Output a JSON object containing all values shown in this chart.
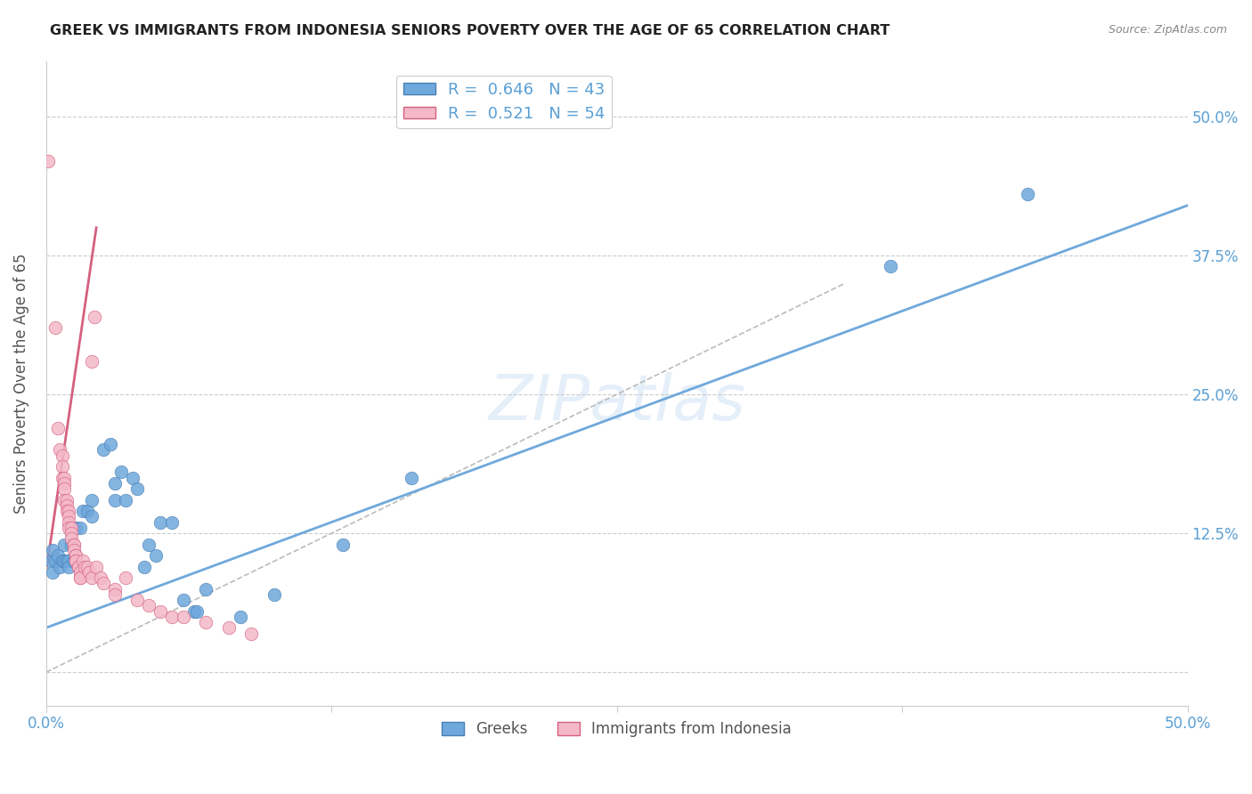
{
  "title": "GREEK VS IMMIGRANTS FROM INDONESIA SENIORS POVERTY OVER THE AGE OF 65 CORRELATION CHART",
  "source": "Source: ZipAtlas.com",
  "ylabel": "Seniors Poverty Over the Age of 65",
  "xlim": [
    0,
    0.5
  ],
  "ylim": [
    -0.03,
    0.55
  ],
  "yticks": [
    0,
    0.125,
    0.25,
    0.375,
    0.5
  ],
  "ytick_labels": [
    "",
    "12.5%",
    "25.0%",
    "37.5%",
    "50.0%"
  ],
  "greek_color": "#6fa8dc",
  "greek_edge": "#4a80b4",
  "indonesia_color": "#f4b8c8",
  "indonesia_edge": "#d46080",
  "greek_R": 0.646,
  "greek_N": 43,
  "indonesia_R": 0.521,
  "indonesia_N": 54,
  "watermark": "ZIPatlas",
  "title_color": "#222222",
  "axis_color": "#5a9fd4",
  "grid_color": "#cccccc",
  "greek_scatter": [
    [
      0.002,
      0.1
    ],
    [
      0.003,
      0.09
    ],
    [
      0.003,
      0.11
    ],
    [
      0.004,
      0.1
    ],
    [
      0.005,
      0.105
    ],
    [
      0.006,
      0.095
    ],
    [
      0.007,
      0.1
    ],
    [
      0.008,
      0.1
    ],
    [
      0.008,
      0.115
    ],
    [
      0.009,
      0.1
    ],
    [
      0.01,
      0.1
    ],
    [
      0.01,
      0.095
    ],
    [
      0.011,
      0.115
    ],
    [
      0.012,
      0.1
    ],
    [
      0.013,
      0.13
    ],
    [
      0.015,
      0.13
    ],
    [
      0.016,
      0.145
    ],
    [
      0.018,
      0.145
    ],
    [
      0.02,
      0.14
    ],
    [
      0.02,
      0.155
    ],
    [
      0.025,
      0.2
    ],
    [
      0.028,
      0.205
    ],
    [
      0.03,
      0.155
    ],
    [
      0.03,
      0.17
    ],
    [
      0.033,
      0.18
    ],
    [
      0.035,
      0.155
    ],
    [
      0.038,
      0.175
    ],
    [
      0.04,
      0.165
    ],
    [
      0.043,
      0.095
    ],
    [
      0.045,
      0.115
    ],
    [
      0.048,
      0.105
    ],
    [
      0.05,
      0.135
    ],
    [
      0.055,
      0.135
    ],
    [
      0.06,
      0.065
    ],
    [
      0.065,
      0.055
    ],
    [
      0.066,
      0.055
    ],
    [
      0.07,
      0.075
    ],
    [
      0.085,
      0.05
    ],
    [
      0.1,
      0.07
    ],
    [
      0.13,
      0.115
    ],
    [
      0.16,
      0.175
    ],
    [
      0.43,
      0.43
    ],
    [
      0.37,
      0.365
    ]
  ],
  "indonesia_scatter": [
    [
      0.001,
      0.46
    ],
    [
      0.004,
      0.31
    ],
    [
      0.005,
      0.22
    ],
    [
      0.006,
      0.2
    ],
    [
      0.007,
      0.195
    ],
    [
      0.007,
      0.185
    ],
    [
      0.007,
      0.175
    ],
    [
      0.008,
      0.175
    ],
    [
      0.008,
      0.17
    ],
    [
      0.008,
      0.165
    ],
    [
      0.008,
      0.155
    ],
    [
      0.009,
      0.155
    ],
    [
      0.009,
      0.15
    ],
    [
      0.009,
      0.145
    ],
    [
      0.01,
      0.145
    ],
    [
      0.01,
      0.14
    ],
    [
      0.01,
      0.135
    ],
    [
      0.01,
      0.13
    ],
    [
      0.011,
      0.13
    ],
    [
      0.011,
      0.125
    ],
    [
      0.011,
      0.12
    ],
    [
      0.012,
      0.115
    ],
    [
      0.012,
      0.115
    ],
    [
      0.012,
      0.11
    ],
    [
      0.013,
      0.105
    ],
    [
      0.013,
      0.105
    ],
    [
      0.013,
      0.1
    ],
    [
      0.013,
      0.1
    ],
    [
      0.014,
      0.095
    ],
    [
      0.014,
      0.095
    ],
    [
      0.015,
      0.09
    ],
    [
      0.015,
      0.085
    ],
    [
      0.015,
      0.085
    ],
    [
      0.016,
      0.1
    ],
    [
      0.017,
      0.095
    ],
    [
      0.018,
      0.095
    ],
    [
      0.019,
      0.09
    ],
    [
      0.02,
      0.085
    ],
    [
      0.02,
      0.28
    ],
    [
      0.021,
      0.32
    ],
    [
      0.022,
      0.095
    ],
    [
      0.024,
      0.085
    ],
    [
      0.025,
      0.08
    ],
    [
      0.03,
      0.075
    ],
    [
      0.03,
      0.07
    ],
    [
      0.035,
      0.085
    ],
    [
      0.04,
      0.065
    ],
    [
      0.045,
      0.06
    ],
    [
      0.05,
      0.055
    ],
    [
      0.055,
      0.05
    ],
    [
      0.06,
      0.05
    ],
    [
      0.07,
      0.045
    ],
    [
      0.08,
      0.04
    ],
    [
      0.09,
      0.035
    ]
  ],
  "greek_line_x": [
    0.0,
    0.5
  ],
  "greek_line_y": [
    0.04,
    0.42
  ],
  "indonesia_line_x": [
    0.0,
    0.022
  ],
  "indonesia_line_y": [
    0.09,
    0.4
  ],
  "diag_line_x": [
    0.0,
    0.35
  ],
  "diag_line_y": [
    0.0,
    0.35
  ]
}
